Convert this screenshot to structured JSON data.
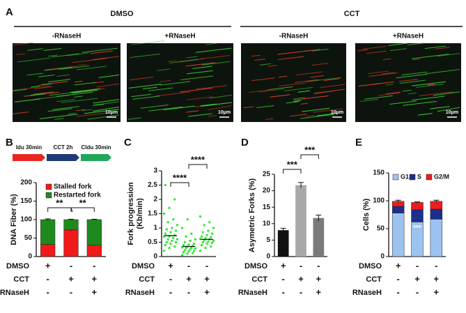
{
  "figure": {
    "panel_labels": [
      "A",
      "B",
      "C",
      "D",
      "E"
    ],
    "groups": [
      "DMSO",
      "CCT"
    ],
    "images": [
      {
        "label": "-RNaseH",
        "scale": "10μm"
      },
      {
        "label": "+RNaseH",
        "scale": "10μm"
      },
      {
        "label": "-RNaseH",
        "scale": "10μm"
      },
      {
        "label": "+RNaseH",
        "scale": "10μm"
      }
    ],
    "protocol": [
      {
        "label": "Idu 30min",
        "color": "#e8251f"
      },
      {
        "label": "CCT 2h",
        "color": "#1f3a7a"
      },
      {
        "label": "Cldu 30min",
        "color": "#1fa85a"
      }
    ]
  },
  "chart_data": [
    {
      "type": "stacked_bar",
      "ylabel": "DNA Fiber (%)",
      "ylim": [
        0,
        200
      ],
      "yticks": [
        0,
        50,
        100,
        150,
        200
      ],
      "series": [
        {
          "name": "Stalled  fork",
          "color": "#f01a1a",
          "values": [
            33,
            72,
            31
          ],
          "errors": [
            2,
            3,
            2
          ]
        },
        {
          "name": "Restarted fork",
          "color": "#1e8a1e",
          "values": [
            67,
            28,
            69
          ],
          "errors": [
            2,
            1,
            1
          ]
        }
      ],
      "annotations": [
        {
          "text": "**",
          "between": [
            0,
            1
          ]
        },
        {
          "text": "**",
          "between": [
            1,
            2
          ]
        }
      ],
      "conditions": [
        {
          "name": "DMSO",
          "signs": [
            "+",
            "-",
            "-"
          ]
        },
        {
          "name": "CCT",
          "signs": [
            "-",
            "+",
            "+"
          ]
        },
        {
          "name": "RNaseH",
          "signs": [
            "-",
            "-",
            "+"
          ]
        }
      ]
    },
    {
      "type": "strip",
      "ylabel": [
        "Fork progression",
        "(Kb/min)"
      ],
      "ylim": [
        0,
        3
      ],
      "yticks": [
        0,
        0.5,
        1,
        1.5,
        2,
        2.5,
        3
      ],
      "color": "#2ee82e",
      "groups": [
        {
          "values": [
            0.2,
            0.3,
            0.35,
            0.4,
            0.45,
            0.5,
            0.5,
            0.55,
            0.6,
            0.6,
            0.65,
            0.7,
            0.7,
            0.75,
            0.8,
            0.85,
            0.9,
            0.95,
            1.0,
            1.1,
            1.2,
            1.3,
            1.5,
            1.7,
            2.0,
            2.5
          ],
          "mean": 0.73
        },
        {
          "values": [
            0.05,
            0.1,
            0.12,
            0.15,
            0.18,
            0.2,
            0.22,
            0.25,
            0.28,
            0.3,
            0.3,
            0.32,
            0.35,
            0.38,
            0.4,
            0.42,
            0.45,
            0.5,
            0.55,
            0.6,
            0.7,
            0.8,
            1.0,
            1.3
          ],
          "mean": 0.35
        },
        {
          "values": [
            0.2,
            0.3,
            0.35,
            0.4,
            0.45,
            0.48,
            0.5,
            0.52,
            0.55,
            0.58,
            0.6,
            0.62,
            0.65,
            0.68,
            0.7,
            0.75,
            0.8,
            0.85,
            0.9,
            1.0,
            1.1,
            1.2,
            1.4
          ],
          "mean": 0.6
        }
      ],
      "annotations": [
        {
          "text": "****",
          "between": [
            0,
            1
          ]
        },
        {
          "text": "****",
          "between": [
            1,
            2
          ]
        }
      ],
      "conditions": [
        {
          "name": "DMSO",
          "signs": [
            "+",
            "-",
            "-"
          ]
        },
        {
          "name": "CCT",
          "signs": [
            "-",
            "+",
            "+"
          ]
        },
        {
          "name": "RNaseH",
          "signs": [
            "-",
            "-",
            "+"
          ]
        }
      ]
    },
    {
      "type": "bar",
      "ylabel": "Asymetric Forks (%)",
      "ylim": [
        0,
        25
      ],
      "yticks": [
        0,
        5,
        10,
        15,
        20,
        25
      ],
      "values": [
        8,
        21.7,
        11.7
      ],
      "errors": [
        0.6,
        0.8,
        0.9
      ],
      "colors": [
        "#111111",
        "#a8a8a8",
        "#7a7a7a"
      ],
      "annotations": [
        {
          "text": "***",
          "between": [
            0,
            1
          ]
        },
        {
          "text": "***",
          "between": [
            1,
            2
          ]
        }
      ],
      "conditions": [
        {
          "name": "DMSO",
          "signs": [
            "+",
            "-",
            "-"
          ]
        },
        {
          "name": "CCT",
          "signs": [
            "-",
            "+",
            "+"
          ]
        },
        {
          "name": "RNaseH",
          "signs": [
            "-",
            "-",
            "+"
          ]
        }
      ]
    },
    {
      "type": "stacked_bar",
      "ylabel": "Cells (%)",
      "ylim": [
        0,
        150
      ],
      "yticks": [
        0,
        50,
        100,
        150
      ],
      "series": [
        {
          "name": "G1",
          "color": "#9cc3f0",
          "values": [
            78,
            62,
            67
          ]
        },
        {
          "name": "S",
          "color": "#1c2f8c",
          "values": [
            12,
            22,
            18
          ]
        },
        {
          "name": "G2/M",
          "color": "#ee1c1c",
          "values": [
            9,
            13,
            14
          ],
          "errors": [
            2,
            1,
            2
          ]
        }
      ],
      "bar_annotations": [
        {
          "text": "***",
          "index": 1
        }
      ],
      "conditions": [
        {
          "name": "DMSO",
          "signs": [
            "+",
            "-",
            "-"
          ]
        },
        {
          "name": "CCT",
          "signs": [
            "-",
            "+",
            "+"
          ]
        },
        {
          "name": "RNaseH",
          "signs": [
            "-",
            "-",
            "+"
          ]
        }
      ]
    }
  ]
}
